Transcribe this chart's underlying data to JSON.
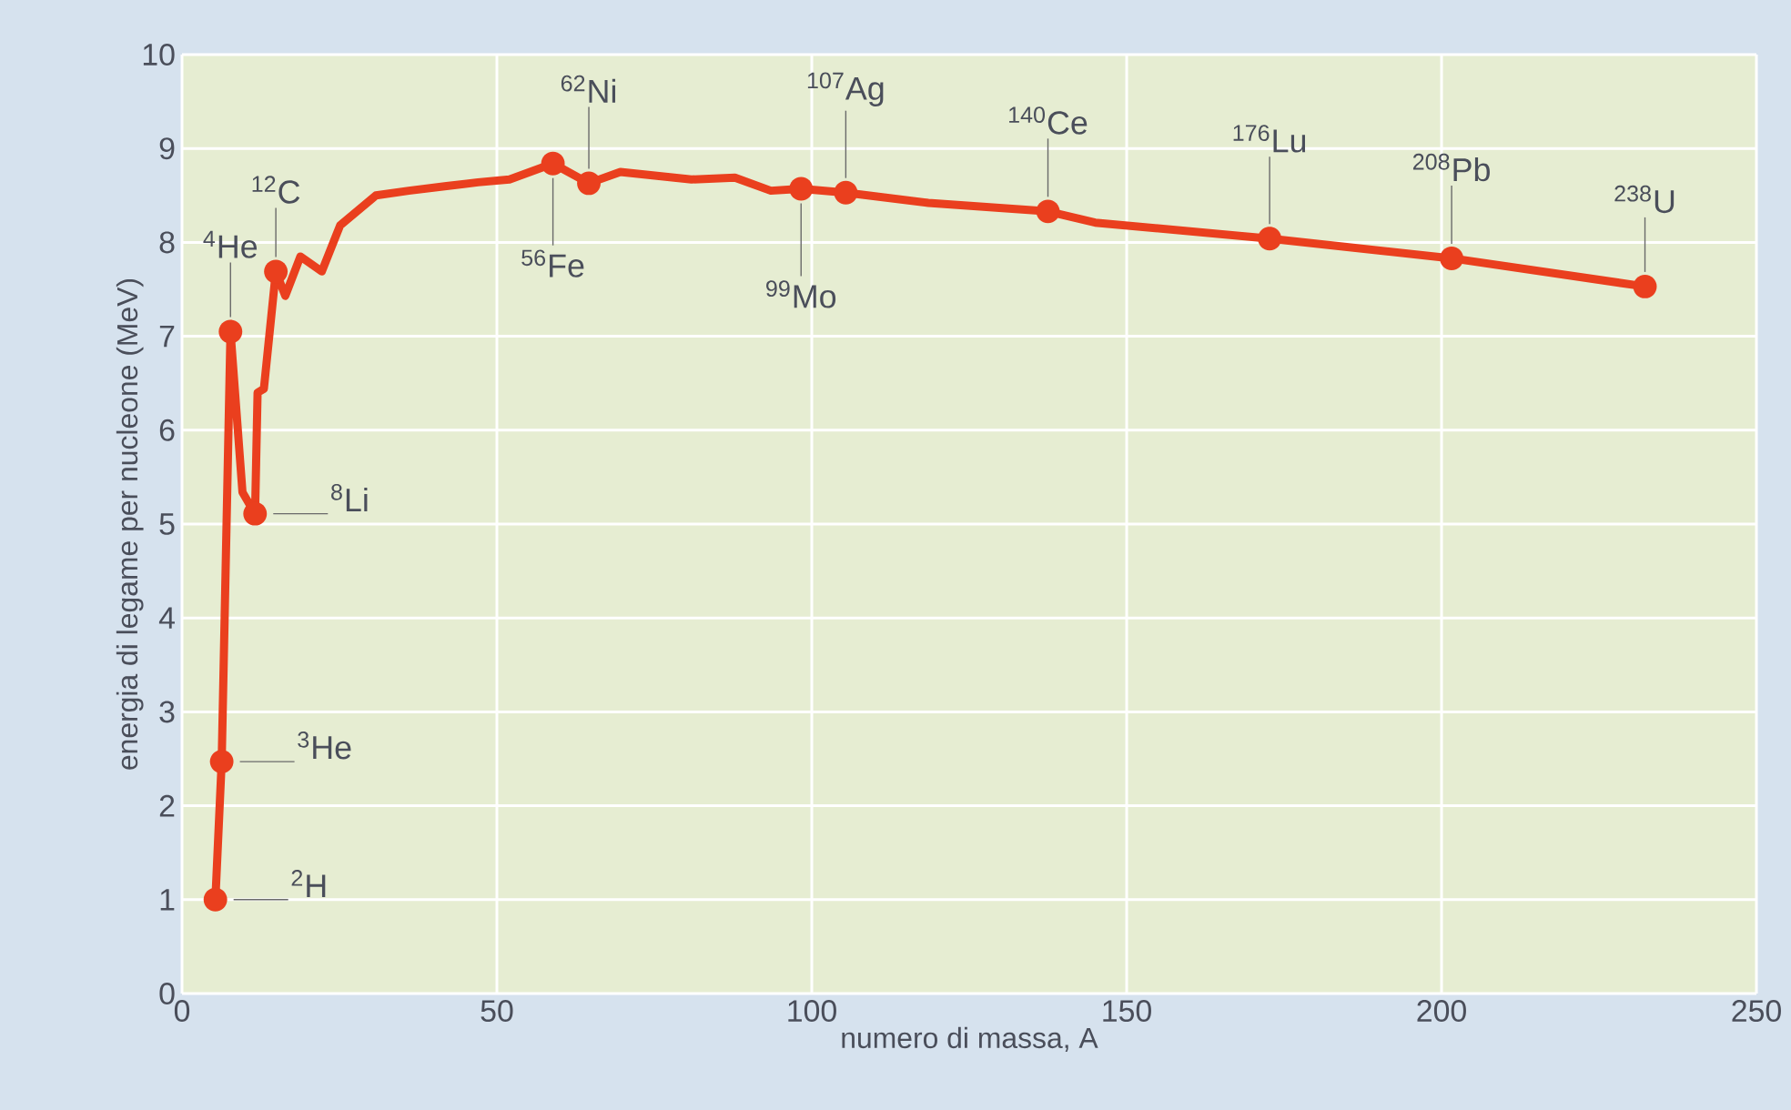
{
  "chart_data": {
    "type": "line",
    "xlabel": "numero di massa, A",
    "ylabel": "energia di legame per nucleone (MeV)",
    "xlim": [
      0,
      250
    ],
    "xticks": [
      0,
      50,
      100,
      150,
      200,
      250
    ],
    "ylim": [
      0,
      10
    ],
    "yticks": [
      0,
      1,
      2,
      3,
      4,
      5,
      6,
      7,
      8,
      9,
      10
    ],
    "grid": true,
    "marker": "none",
    "line_style": "solid",
    "series": [
      {
        "color": "#ea3f1e",
        "x": [
          5.3,
          6.3,
          7.7,
          9.6,
          11.6,
          12.0,
          13.0,
          14.9,
          16.4,
          18.8,
          22.2,
          25.1,
          30.8,
          36,
          42,
          47,
          52.0,
          58.9,
          64.6,
          69.6,
          80.9,
          87.8,
          93.5,
          98.3,
          105.4,
          118.5,
          137.5,
          145,
          172.7,
          201.6,
          232.3
        ],
        "values": [
          1.0,
          2.47,
          7.05,
          5.34,
          5.11,
          6.4,
          6.44,
          7.69,
          7.43,
          7.85,
          7.69,
          8.18,
          8.5,
          8.55,
          8.6,
          8.64,
          8.67,
          8.84,
          8.63,
          8.75,
          8.67,
          8.69,
          8.55,
          8.57,
          8.53,
          8.42,
          8.33,
          8.21,
          8.04,
          7.83,
          7.53
        ]
      }
    ],
    "annotations": [
      {
        "text": "$^{2}$H",
        "x": 5.3,
        "y": 1.0
      },
      {
        "text": "$^{3}$He",
        "x": 6.3,
        "y": 2.47
      },
      {
        "text": "$^{4}$He",
        "x": 7.7,
        "y": 7.05
      },
      {
        "text": "$^{8}$Li",
        "x": 11.6,
        "y": 5.11
      },
      {
        "text": "$^{12}$C",
        "x": 14.9,
        "y": 7.69
      },
      {
        "text": "$^{56}$Fe",
        "x": 58.9,
        "y": 8.84
      },
      {
        "text": "$^{62}$Ni",
        "x": 64.6,
        "y": 8.63
      },
      {
        "text": "$^{99}$Mo",
        "x": 98.3,
        "y": 8.57
      },
      {
        "text": "$^{107}$Ag",
        "x": 105.4,
        "y": 8.53
      },
      {
        "text": "$^{140}$Ce",
        "x": 137.5,
        "y": 8.33
      },
      {
        "text": "$^{176}$Lu",
        "x": 172.7,
        "y": 8.04
      },
      {
        "text": "$^{208}$Pb",
        "x": 201.6,
        "y": 7.83
      },
      {
        "text": "$^{238}$U",
        "x": 232.3,
        "y": 7.53
      }
    ]
  }
}
